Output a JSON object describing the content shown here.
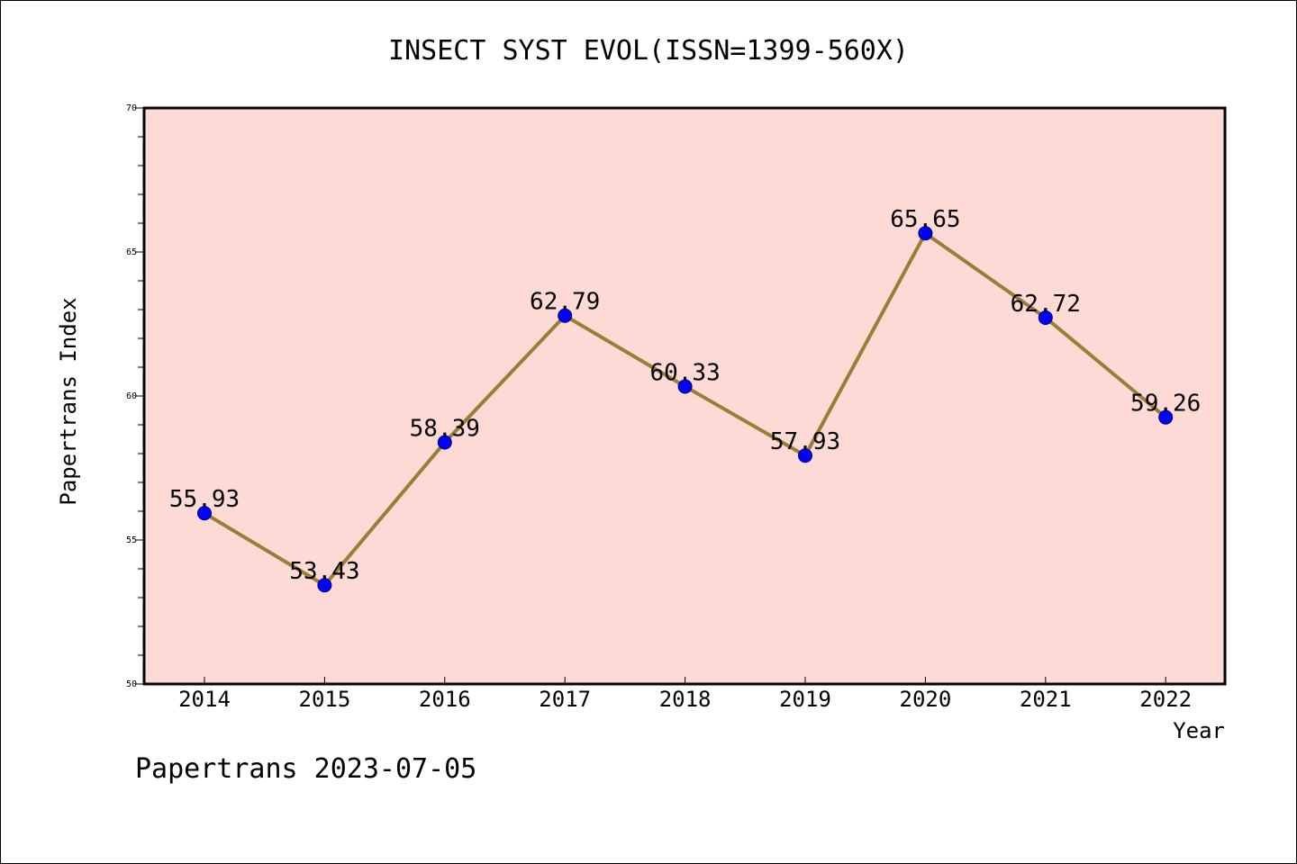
{
  "footer": "Papertrans 2023-07-05",
  "colors": {
    "plot_background": "#fddad6",
    "line": "#9b7e36",
    "marker": "#0000ff",
    "axis": "#000000"
  },
  "chart_data": {
    "type": "line",
    "title": "INSECT SYST EVOL(ISSN=1399-560X)",
    "xlabel": "Year",
    "ylabel": "Papertrans Index",
    "categories": [
      "2014",
      "2015",
      "2016",
      "2017",
      "2018",
      "2019",
      "2020",
      "2021",
      "2022"
    ],
    "series": [
      {
        "values": [
          55.93,
          53.43,
          58.39,
          62.79,
          60.33,
          57.93,
          65.65,
          62.72,
          59.26
        ],
        "labels": [
          "55.93",
          "53.43",
          "58.39",
          "62.79",
          "60.33",
          "57.93",
          "65.65",
          "62.72",
          "59.26"
        ]
      }
    ],
    "ylim": [
      50,
      70
    ],
    "y_major_ticks": [
      50,
      55,
      60,
      65,
      70
    ],
    "y_minor_step": 1,
    "grid": false,
    "legend": "none"
  }
}
